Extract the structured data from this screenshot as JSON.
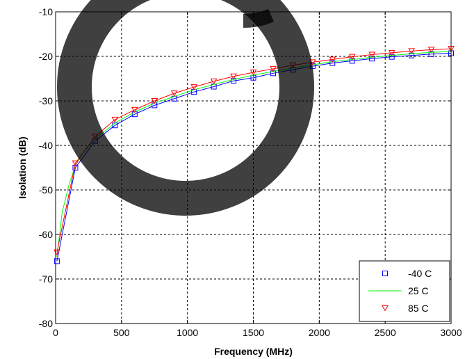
{
  "chart_data": {
    "type": "line",
    "xlabel": "Frequency (MHz)",
    "ylabel": "Isolation (dB)",
    "xlim": [
      0,
      3000
    ],
    "ylim": [
      -80,
      -10
    ],
    "xticks": [
      "0",
      "500",
      "1000",
      "1500",
      "2000",
      "2500",
      "3000"
    ],
    "yticks": [
      "-10",
      "-20",
      "-30",
      "-40",
      "-50",
      "-60",
      "-70",
      "-80"
    ],
    "grid": true,
    "legend_position": "bottom-right",
    "series": [
      {
        "name": "-40 C",
        "color": "#0000ff",
        "marker": "square",
        "line": false,
        "x": [
          10,
          150,
          300,
          450,
          600,
          750,
          900,
          1050,
          1200,
          1350,
          1500,
          1650,
          1800,
          1950,
          2100,
          2250,
          2400,
          2550,
          2700,
          2850,
          3000
        ],
        "y": [
          -66,
          -45,
          -39,
          -35.5,
          -33,
          -31,
          -29.5,
          -28,
          -26.8,
          -25.5,
          -24.8,
          -23.8,
          -23,
          -22.2,
          -21.5,
          -21,
          -20.5,
          -20.1,
          -19.8,
          -19.5,
          -19.3
        ]
      },
      {
        "name": "25 C",
        "color": "#00ff00",
        "marker": "none",
        "line": true,
        "x": [
          10,
          50,
          100,
          150,
          200,
          300,
          450,
          600,
          750,
          900,
          1050,
          1200,
          1350,
          1500,
          1650,
          1800,
          1950,
          2100,
          2250,
          2400,
          2550,
          2700,
          2850,
          3000
        ],
        "y": [
          -65,
          -55,
          -49,
          -44.5,
          -42,
          -38.5,
          -35,
          -32.5,
          -30.5,
          -29,
          -27.5,
          -26.3,
          -25.2,
          -24.2,
          -23.4,
          -22.6,
          -21.9,
          -21.2,
          -20.7,
          -20.2,
          -19.8,
          -19.4,
          -19.1,
          -18.9
        ]
      },
      {
        "name": "85 C",
        "color": "#ff0000",
        "marker": "triangle-down",
        "line": false,
        "x": [
          10,
          150,
          300,
          450,
          600,
          750,
          900,
          1050,
          1200,
          1350,
          1500,
          1650,
          1800,
          1950,
          2100,
          2250,
          2400,
          2550,
          2700,
          2850,
          3000
        ],
        "y": [
          -64,
          -44,
          -38,
          -34.2,
          -32,
          -30,
          -28.3,
          -26.9,
          -25.6,
          -24.5,
          -23.6,
          -22.8,
          -22,
          -21.3,
          -20.7,
          -20.1,
          -19.6,
          -19.2,
          -18.8,
          -18.5,
          -18.3
        ]
      }
    ]
  }
}
